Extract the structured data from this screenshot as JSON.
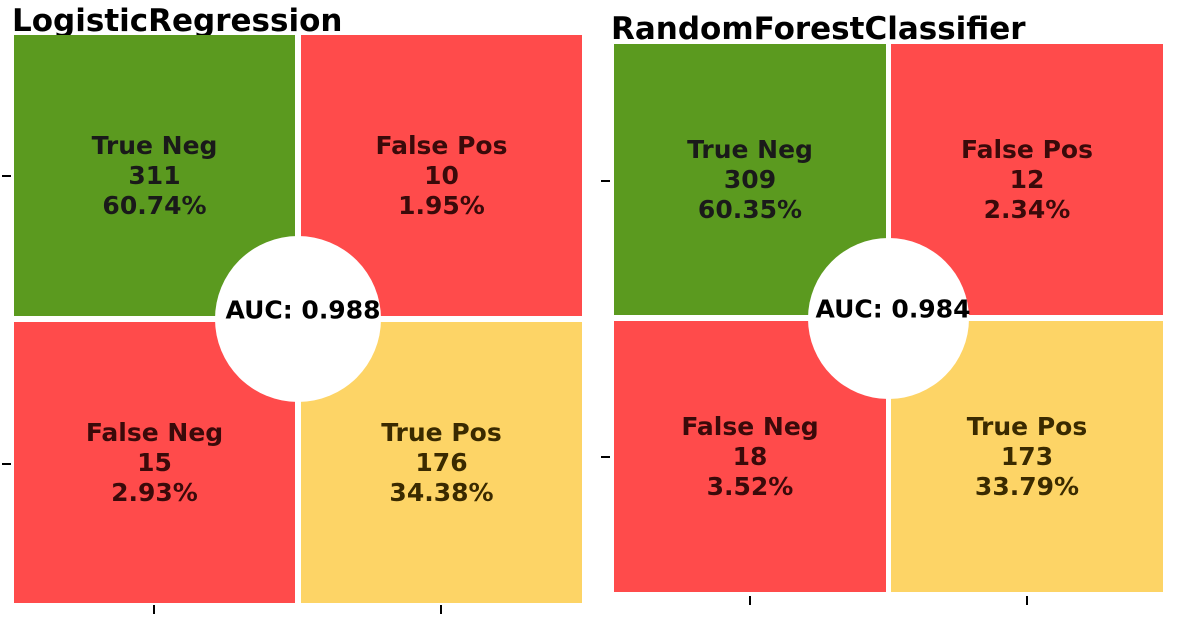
{
  "colors": {
    "true_neg": "#5b9a1f",
    "false": "#ff4b4b",
    "true_pos": "#fdd466",
    "text_dark_on_green": "#1a1a1a",
    "text_dark_on_red": "#3a0a0a",
    "text_dark_on_yellow": "#3a2a00"
  },
  "chart_data": [
    {
      "type": "heatmap",
      "title": "LogisticRegression",
      "cells": [
        {
          "label": "True Neg",
          "count": "311",
          "percent": "60.74%",
          "value": 311
        },
        {
          "label": "False Pos",
          "count": "10",
          "percent": "1.95%",
          "value": 10
        },
        {
          "label": "False Neg",
          "count": "15",
          "percent": "2.93%",
          "value": 15
        },
        {
          "label": "True Pos",
          "count": "176",
          "percent": "34.38%",
          "value": 176
        }
      ],
      "auc_label": "AUC: 0.988",
      "auc": 0.988
    },
    {
      "type": "heatmap",
      "title": "RandomForestClassifier",
      "cells": [
        {
          "label": "True Neg",
          "count": "309",
          "percent": "60.35%",
          "value": 309
        },
        {
          "label": "False Pos",
          "count": "12",
          "percent": "2.34%",
          "value": 12
        },
        {
          "label": "False Neg",
          "count": "18",
          "percent": "3.52%",
          "value": 18
        },
        {
          "label": "True Pos",
          "count": "173",
          "percent": "33.79%",
          "value": 173
        }
      ],
      "auc_label": "AUC: 0.984",
      "auc": 0.984
    }
  ]
}
